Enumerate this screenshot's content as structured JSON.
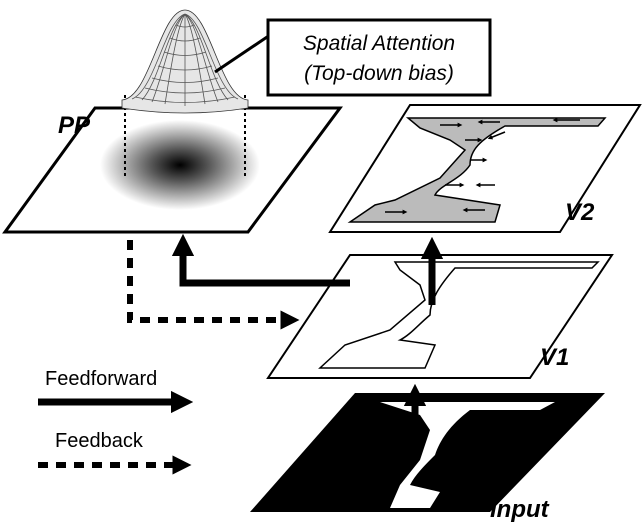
{
  "callout": {
    "line1": "Spatial Attention",
    "line2": "(Top-down bias)"
  },
  "layers": {
    "pp": "PP",
    "v2": "V2",
    "v1": "V1",
    "input": "Input"
  },
  "legend": {
    "feedforward": "Feedforward",
    "feedback": "Feedback"
  }
}
